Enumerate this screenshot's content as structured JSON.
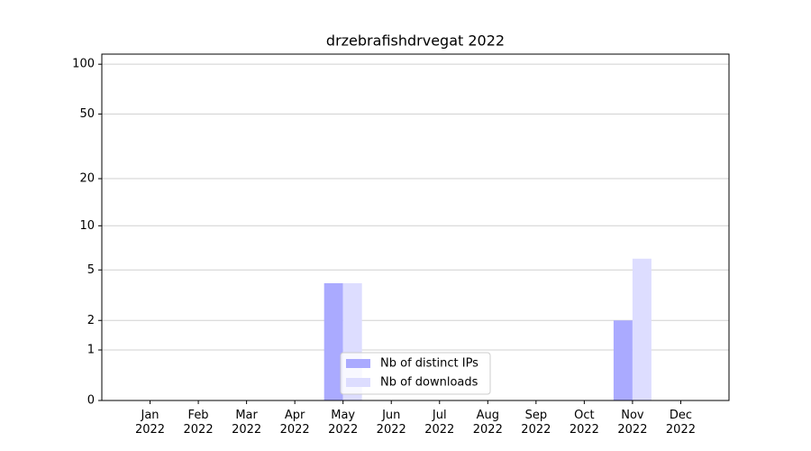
{
  "chart_data": {
    "type": "bar",
    "title": "drzebrafishdrvegat 2022",
    "categories": [
      "Jan\n2022",
      "Feb\n2022",
      "Mar\n2022",
      "Apr\n2022",
      "May\n2022",
      "Jun\n2022",
      "Jul\n2022",
      "Aug\n2022",
      "Sep\n2022",
      "Oct\n2022",
      "Nov\n2022",
      "Dec\n2022"
    ],
    "series": [
      {
        "name": "Nb of distinct IPs",
        "color": "#aaaaff",
        "values": [
          0,
          0,
          0,
          0,
          4,
          0,
          0,
          0,
          0,
          0,
          2,
          0
        ]
      },
      {
        "name": "Nb of downloads",
        "color": "#ddddff",
        "values": [
          0,
          0,
          0,
          0,
          4,
          0,
          0,
          0,
          0,
          0,
          6,
          0
        ]
      }
    ],
    "yscale": "log1p",
    "ylim": [
      0,
      115
    ],
    "yticks": [
      0,
      1,
      2,
      5,
      10,
      20,
      50,
      100
    ],
    "grid": true,
    "legend": "lower center"
  }
}
